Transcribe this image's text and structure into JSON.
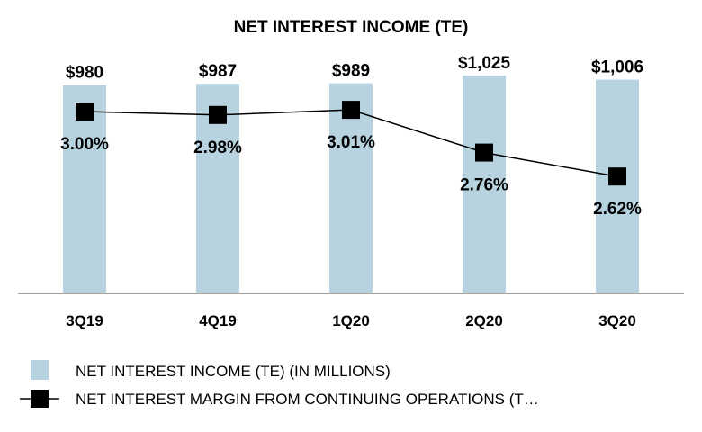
{
  "chart_data": {
    "type": "bar",
    "title": "NET INTEREST INCOME (TE)",
    "categories": [
      "3Q19",
      "4Q19",
      "1Q20",
      "2Q20",
      "3Q20"
    ],
    "series": [
      {
        "name": "NET INTEREST INCOME (TE) (IN MILLIONS)",
        "type": "bar",
        "values": [
          980,
          987,
          989,
          1025,
          1006
        ],
        "labels": [
          "$980",
          "$987",
          "$989",
          "$1,025",
          "$1,006"
        ],
        "color": "#b8d3e0"
      },
      {
        "name": "NET INTEREST MARGIN FROM CONTINUING OPERATIONS (T…",
        "type": "line",
        "values": [
          3.0,
          2.98,
          3.01,
          2.76,
          2.62
        ],
        "labels": [
          "3.00%",
          "2.98%",
          "3.01%",
          "2.76%",
          "2.62%"
        ],
        "color": "#000000"
      }
    ],
    "xlabel": "",
    "ylabel": "",
    "axis_color": "#a6a6a6"
  }
}
